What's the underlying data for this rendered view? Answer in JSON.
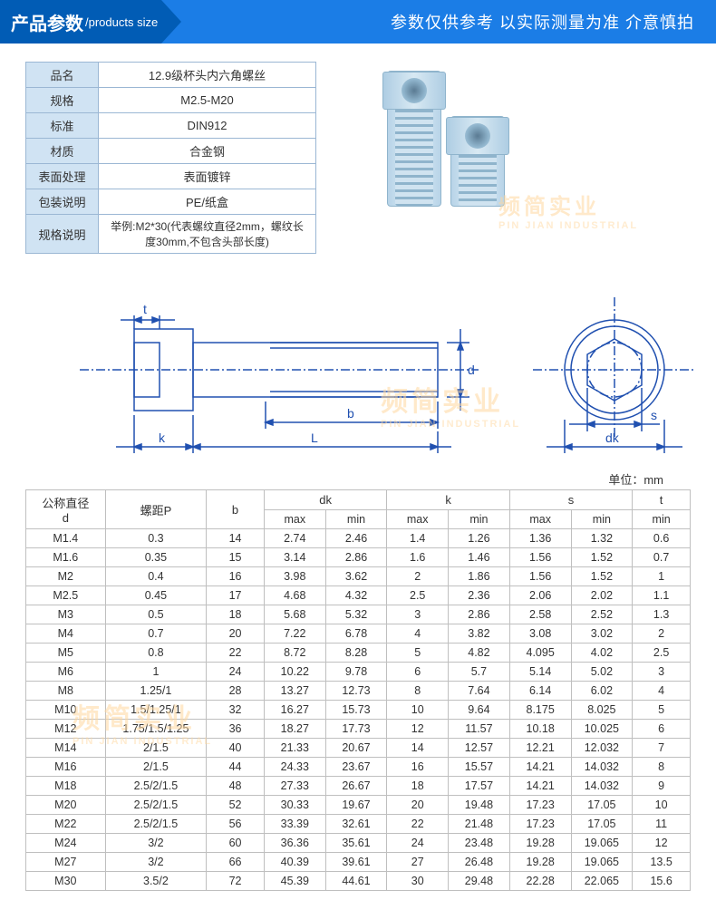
{
  "header": {
    "title_cn": "产品参数",
    "title_en": "/products size",
    "note": "参数仅供参考 以实际测量为准 介意慎拍"
  },
  "watermark": {
    "cn": "频简实业",
    "en": "PIN JIAN INDUSTRIAL"
  },
  "info": [
    {
      "label": "品名",
      "value": "12.9级杯头内六角螺丝"
    },
    {
      "label": "规格",
      "value": "M2.5-M20"
    },
    {
      "label": "标准",
      "value": "DIN912"
    },
    {
      "label": "材质",
      "value": "合金钢"
    },
    {
      "label": "表面处理",
      "value": "表面镀锌"
    },
    {
      "label": "包装说明",
      "value": "PE/纸盒"
    }
  ],
  "info_note": {
    "label": "规格说明",
    "value": "举例:M2*30(代表螺纹直径2mm，螺纹长度30mm,不包含头部长度)"
  },
  "diagram": {
    "labels": {
      "t": "t",
      "d": "d",
      "b": "b",
      "k": "k",
      "L": "L",
      "s": "s",
      "dk": "dk"
    }
  },
  "unit_note": "单位：mm",
  "spec": {
    "columns_top": [
      {
        "key": "d",
        "label_top": "公称直径",
        "label_bot": "d",
        "rowspan": 2
      },
      {
        "key": "p",
        "label": "螺距P",
        "rowspan": 2
      },
      {
        "key": "b",
        "label": "b",
        "rowspan": 2
      },
      {
        "key": "dk",
        "label": "dk",
        "colspan": 2
      },
      {
        "key": "k",
        "label": "k",
        "colspan": 2
      },
      {
        "key": "s",
        "label": "s",
        "colspan": 2
      },
      {
        "key": "t",
        "label": "t",
        "colspan": 1
      }
    ],
    "columns_sub": [
      "max",
      "min",
      "max",
      "min",
      "max",
      "min",
      "min"
    ],
    "rows": [
      [
        "M1.4",
        "0.3",
        "14",
        "2.74",
        "2.46",
        "1.4",
        "1.26",
        "1.36",
        "1.32",
        "0.6"
      ],
      [
        "M1.6",
        "0.35",
        "15",
        "3.14",
        "2.86",
        "1.6",
        "1.46",
        "1.56",
        "1.52",
        "0.7"
      ],
      [
        "M2",
        "0.4",
        "16",
        "3.98",
        "3.62",
        "2",
        "1.86",
        "1.56",
        "1.52",
        "1"
      ],
      [
        "M2.5",
        "0.45",
        "17",
        "4.68",
        "4.32",
        "2.5",
        "2.36",
        "2.06",
        "2.02",
        "1.1"
      ],
      [
        "M3",
        "0.5",
        "18",
        "5.68",
        "5.32",
        "3",
        "2.86",
        "2.58",
        "2.52",
        "1.3"
      ],
      [
        "M4",
        "0.7",
        "20",
        "7.22",
        "6.78",
        "4",
        "3.82",
        "3.08",
        "3.02",
        "2"
      ],
      [
        "M5",
        "0.8",
        "22",
        "8.72",
        "8.28",
        "5",
        "4.82",
        "4.095",
        "4.02",
        "2.5"
      ],
      [
        "M6",
        "1",
        "24",
        "10.22",
        "9.78",
        "6",
        "5.7",
        "5.14",
        "5.02",
        "3"
      ],
      [
        "M8",
        "1.25/1",
        "28",
        "13.27",
        "12.73",
        "8",
        "7.64",
        "6.14",
        "6.02",
        "4"
      ],
      [
        "M10",
        "1.5/1.25/1",
        "32",
        "16.27",
        "15.73",
        "10",
        "9.64",
        "8.175",
        "8.025",
        "5"
      ],
      [
        "M12",
        "1.75/1.5/1.25",
        "36",
        "18.27",
        "17.73",
        "12",
        "11.57",
        "10.18",
        "10.025",
        "6"
      ],
      [
        "M14",
        "2/1.5",
        "40",
        "21.33",
        "20.67",
        "14",
        "12.57",
        "12.21",
        "12.032",
        "7"
      ],
      [
        "M16",
        "2/1.5",
        "44",
        "24.33",
        "23.67",
        "16",
        "15.57",
        "14.21",
        "14.032",
        "8"
      ],
      [
        "M18",
        "2.5/2/1.5",
        "48",
        "27.33",
        "26.67",
        "18",
        "17.57",
        "14.21",
        "14.032",
        "9"
      ],
      [
        "M20",
        "2.5/2/1.5",
        "52",
        "30.33",
        "19.67",
        "20",
        "19.48",
        "17.23",
        "17.05",
        "10"
      ],
      [
        "M22",
        "2.5/2/1.5",
        "56",
        "33.39",
        "32.61",
        "22",
        "21.48",
        "17.23",
        "17.05",
        "11"
      ],
      [
        "M24",
        "3/2",
        "60",
        "36.36",
        "35.61",
        "24",
        "23.48",
        "19.28",
        "19.065",
        "12"
      ],
      [
        "M27",
        "3/2",
        "66",
        "40.39",
        "39.61",
        "27",
        "26.48",
        "19.28",
        "19.065",
        "13.5"
      ],
      [
        "M30",
        "3.5/2",
        "72",
        "45.39",
        "44.61",
        "30",
        "29.48",
        "22.28",
        "22.065",
        "15.6"
      ]
    ]
  },
  "colors": {
    "header_dark": "#015cb5",
    "header_light": "#1b7de6",
    "table_border": "#bfbfbf",
    "info_label_bg": "#d0e3f3",
    "info_border": "#9bb7d4",
    "diagram_stroke": "#2050b0"
  }
}
